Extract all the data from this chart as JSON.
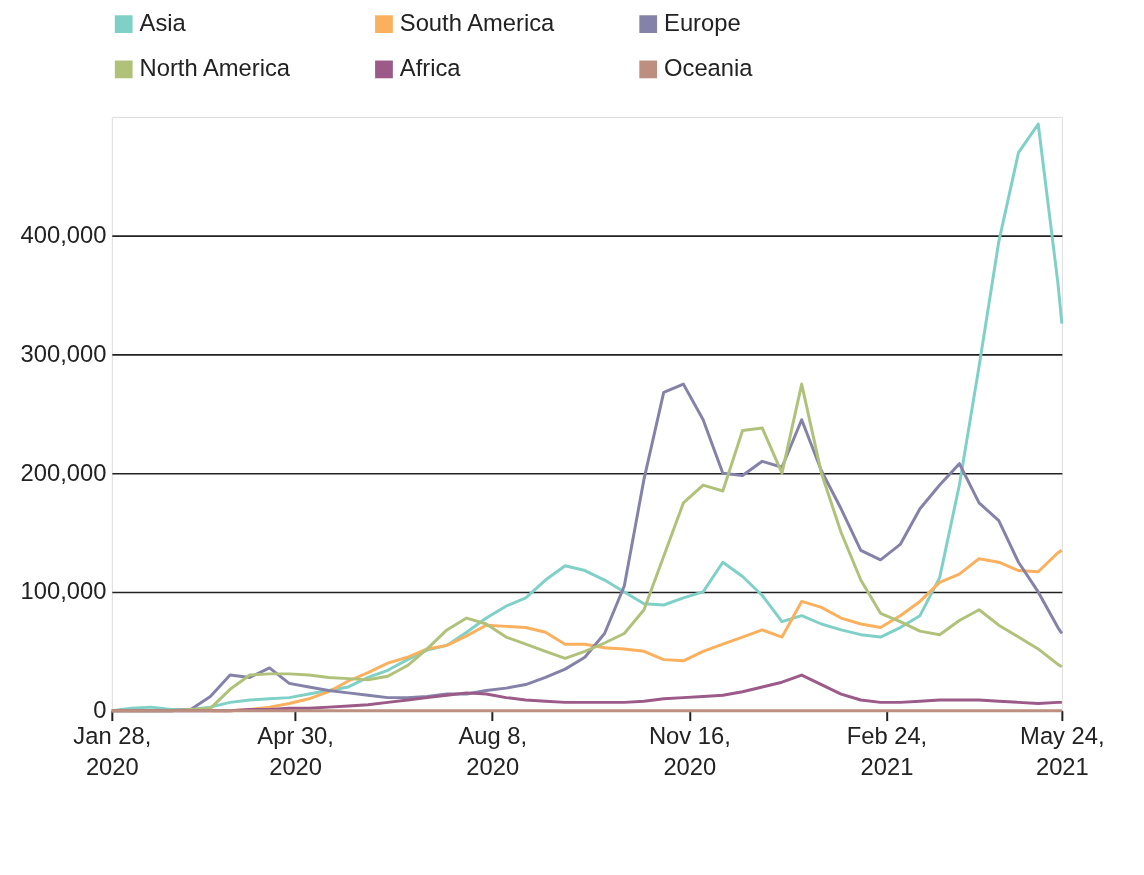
{
  "chart_data": {
    "type": "line",
    "legend": "top",
    "grid": "y",
    "marker": "none",
    "line_style": "solid",
    "x": [
      "2020-01-28",
      "2020-02-07",
      "2020-02-17",
      "2020-02-27",
      "2020-03-08",
      "2020-03-18",
      "2020-03-28",
      "2020-04-07",
      "2020-04-17",
      "2020-04-27",
      "2020-05-07",
      "2020-05-17",
      "2020-05-27",
      "2020-06-06",
      "2020-06-16",
      "2020-06-26",
      "2020-07-06",
      "2020-07-16",
      "2020-07-26",
      "2020-08-05",
      "2020-08-15",
      "2020-08-25",
      "2020-09-04",
      "2020-09-14",
      "2020-09-24",
      "2020-10-04",
      "2020-10-14",
      "2020-10-24",
      "2020-11-03",
      "2020-11-13",
      "2020-11-23",
      "2020-12-03",
      "2020-12-13",
      "2020-12-23",
      "2021-01-02",
      "2021-01-12",
      "2021-01-22",
      "2021-02-01",
      "2021-02-11",
      "2021-02-21",
      "2021-03-03",
      "2021-03-13",
      "2021-03-23",
      "2021-04-02",
      "2021-04-12",
      "2021-04-22",
      "2021-05-02",
      "2021-05-12",
      "2021-05-22",
      "2021-05-24"
    ],
    "xlim": [
      "2020-01-28",
      "2021-05-24"
    ],
    "xticks": [
      {
        "value": "2020-01-28",
        "label": "Jan 28, 2020"
      },
      {
        "value": "2020-04-30",
        "label": "Apr 30, 2020"
      },
      {
        "value": "2020-08-08",
        "label": "Aug 8, 2020"
      },
      {
        "value": "2020-11-16",
        "label": "Nov 16, 2020"
      },
      {
        "value": "2021-02-24",
        "label": "Feb 24, 2021"
      },
      {
        "value": "2021-05-24",
        "label": "May 24, 2021"
      }
    ],
    "ylim": [
      0,
      500000
    ],
    "yticks": [
      {
        "value": 0,
        "label": "0"
      },
      {
        "value": 100000,
        "label": "100,000"
      },
      {
        "value": 200000,
        "label": "200,000"
      },
      {
        "value": 300000,
        "label": "300,000"
      },
      {
        "value": 400000,
        "label": "400,000"
      }
    ],
    "series": [
      {
        "name": "Asia",
        "color": "#7fd1c7",
        "values": [
          0,
          2000,
          3000,
          1000,
          1000,
          3000,
          7000,
          9000,
          10000,
          11000,
          14000,
          17000,
          20000,
          28000,
          34000,
          43000,
          51000,
          55000,
          66000,
          78000,
          88000,
          95000,
          110000,
          122000,
          118000,
          110000,
          100000,
          90000,
          89000,
          95000,
          100000,
          125000,
          113000,
          97000,
          75000,
          80000,
          73000,
          68000,
          64000,
          62000,
          70000,
          80000,
          112000,
          190000,
          290000,
          395000,
          470000,
          494000,
          360000,
          326000
        ]
      },
      {
        "name": "South America",
        "color": "#fbb05e",
        "values": [
          null,
          null,
          null,
          null,
          null,
          0,
          0,
          1000,
          3000,
          6000,
          10000,
          16000,
          25000,
          32000,
          40000,
          45000,
          52000,
          55000,
          63000,
          72000,
          71000,
          70000,
          66000,
          56000,
          56000,
          53000,
          52000,
          50000,
          43000,
          42000,
          50000,
          56000,
          62000,
          68000,
          62000,
          92000,
          87000,
          78000,
          73000,
          70000,
          80000,
          92000,
          108000,
          115000,
          128000,
          125000,
          118000,
          117000,
          133000,
          135000
        ]
      },
      {
        "name": "Europe",
        "color": "#8482a8",
        "values": [
          0,
          0,
          0,
          0,
          1000,
          12000,
          30000,
          28000,
          36000,
          23000,
          20000,
          17000,
          15000,
          13000,
          11000,
          11000,
          12000,
          14000,
          14000,
          17000,
          19000,
          22000,
          28000,
          35000,
          45000,
          65000,
          105000,
          195000,
          268000,
          275000,
          245000,
          200000,
          198000,
          210000,
          205000,
          245000,
          202000,
          170000,
          135000,
          127000,
          140000,
          170000,
          190000,
          208000,
          175000,
          160000,
          125000,
          100000,
          70000,
          65000
        ]
      },
      {
        "name": "North America",
        "color": "#b0c27a",
        "values": [
          0,
          0,
          0,
          0,
          1000,
          2000,
          18000,
          30000,
          31000,
          31000,
          30000,
          28000,
          27000,
          26000,
          29000,
          38000,
          52000,
          68000,
          78000,
          73000,
          62000,
          56000,
          50000,
          44000,
          50000,
          57000,
          65000,
          85000,
          130000,
          175000,
          190000,
          185000,
          236000,
          238000,
          200000,
          275000,
          200000,
          150000,
          110000,
          82000,
          75000,
          67000,
          64000,
          76000,
          85000,
          72000,
          62000,
          52000,
          39000,
          37000
        ]
      },
      {
        "name": "Africa",
        "color": "#9b5a87",
        "values": [
          0,
          0,
          0,
          0,
          0,
          0,
          0,
          1000,
          1000,
          2000,
          2000,
          3000,
          4000,
          5000,
          7000,
          9000,
          11000,
          13000,
          15000,
          14000,
          11000,
          9000,
          8000,
          7000,
          7000,
          7000,
          7000,
          8000,
          10000,
          11000,
          12000,
          13000,
          16000,
          20000,
          24000,
          30000,
          22000,
          14000,
          9000,
          7000,
          7000,
          8000,
          9000,
          9000,
          9000,
          8000,
          7000,
          6000,
          7000,
          7000
        ]
      },
      {
        "name": "Oceania",
        "color": "#bd8f80",
        "values": [
          0,
          0,
          0,
          0,
          0,
          0,
          0,
          0,
          0,
          0,
          0,
          0,
          0,
          0,
          0,
          0,
          0,
          0,
          0,
          0,
          0,
          0,
          0,
          0,
          0,
          0,
          0,
          0,
          0,
          0,
          0,
          0,
          0,
          0,
          0,
          0,
          0,
          0,
          0,
          0,
          0,
          0,
          0,
          0,
          0,
          0,
          0,
          0,
          0,
          0
        ]
      }
    ]
  }
}
